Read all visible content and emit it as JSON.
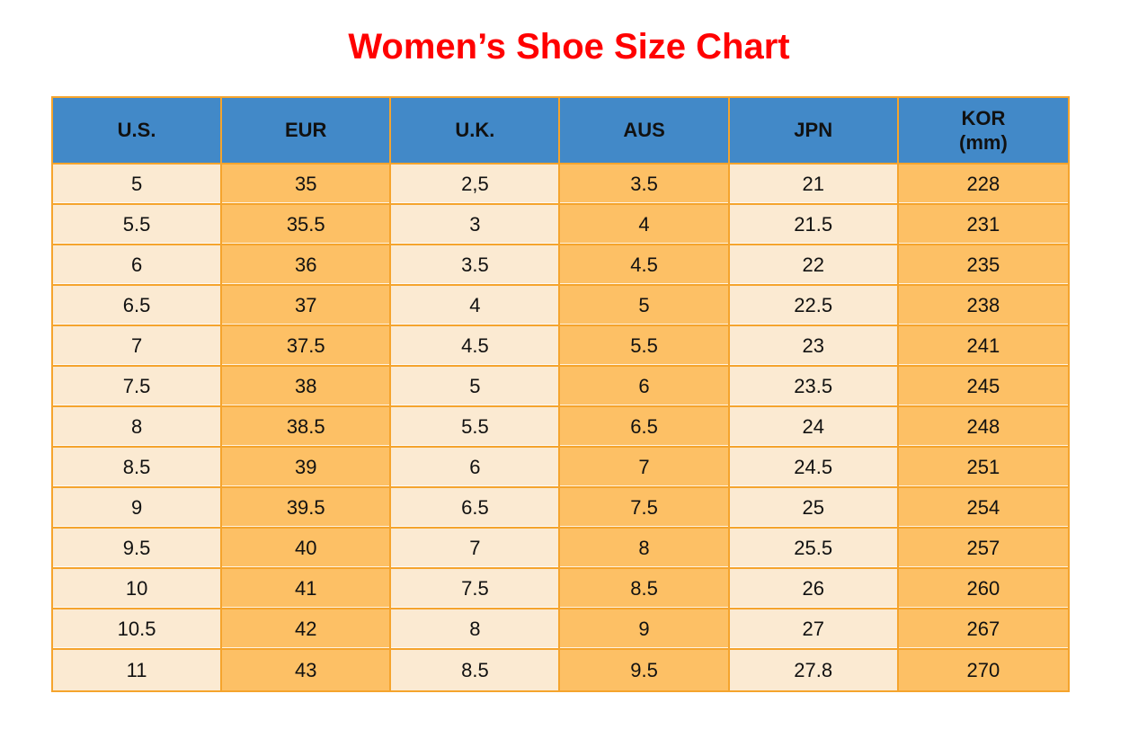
{
  "title": "Women’s Shoe Size Chart",
  "palette": {
    "title_color": "#ff0000",
    "header_bg": "#4289c8",
    "cream_cell": "#fbead2",
    "orange_cell": "#fdc065",
    "border": "#f5a42d",
    "text": "#111111"
  },
  "chart_data": {
    "type": "table",
    "title": "Women’s Shoe Size Chart",
    "columns": [
      "U.S.",
      "EUR",
      "U.K.",
      "AUS",
      "JPN",
      "KOR (mm)"
    ],
    "header_lines": [
      [
        "U.S."
      ],
      [
        "EUR"
      ],
      [
        "U.K."
      ],
      [
        "AUS"
      ],
      [
        "JPN"
      ],
      [
        "KOR",
        "(mm)"
      ]
    ],
    "column_fill_pattern": [
      "cream",
      "orange",
      "cream",
      "orange",
      "cream",
      "orange"
    ],
    "rows": [
      [
        "5",
        "35",
        "2,5",
        "3.5",
        "21",
        "228"
      ],
      [
        "5.5",
        "35.5",
        "3",
        "4",
        "21.5",
        "231"
      ],
      [
        "6",
        "36",
        "3.5",
        "4.5",
        "22",
        "235"
      ],
      [
        "6.5",
        "37",
        "4",
        "5",
        "22.5",
        "238"
      ],
      [
        "7",
        "37.5",
        "4.5",
        "5.5",
        "23",
        "241"
      ],
      [
        "7.5",
        "38",
        "5",
        "6",
        "23.5",
        "245"
      ],
      [
        "8",
        "38.5",
        "5.5",
        "6.5",
        "24",
        "248"
      ],
      [
        "8.5",
        "39",
        "6",
        "7",
        "24.5",
        "251"
      ],
      [
        "9",
        "39.5",
        "6.5",
        "7.5",
        "25",
        "254"
      ],
      [
        "9.5",
        "40",
        "7",
        "8",
        "25.5",
        "257"
      ],
      [
        "10",
        "41",
        "7.5",
        "8.5",
        "26",
        "260"
      ],
      [
        "10.5",
        "42",
        "8",
        "9",
        "27",
        "267"
      ],
      [
        "11",
        "43",
        "8.5",
        "9.5",
        "27.8",
        "270"
      ]
    ]
  }
}
